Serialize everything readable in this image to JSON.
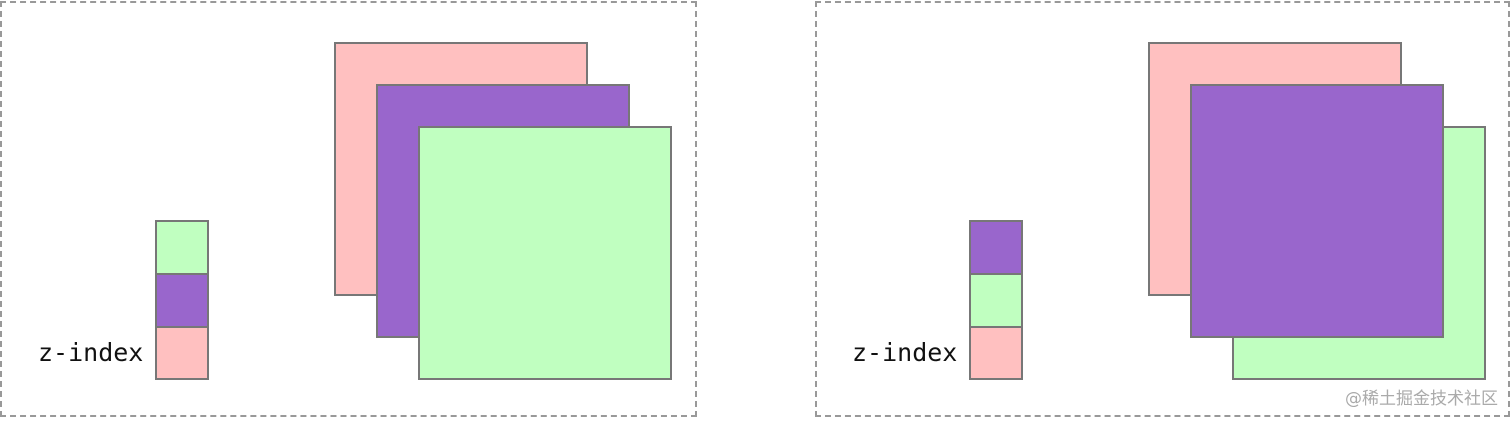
{
  "colors": {
    "pink": "#ffc0c0",
    "purple": "#9966cc",
    "green": "#c0ffc0",
    "border": "#777777"
  },
  "panels": [
    {
      "label": "z-index",
      "stack_top_to_bottom": [
        "green",
        "purple",
        "pink"
      ],
      "square_paint_order": [
        "pink",
        "purple",
        "green"
      ]
    },
    {
      "label": "z-index",
      "stack_top_to_bottom": [
        "purple",
        "green",
        "pink"
      ],
      "square_paint_order": [
        "pink",
        "green",
        "purple"
      ]
    }
  ],
  "watermark": "@稀土掘金技术社区"
}
